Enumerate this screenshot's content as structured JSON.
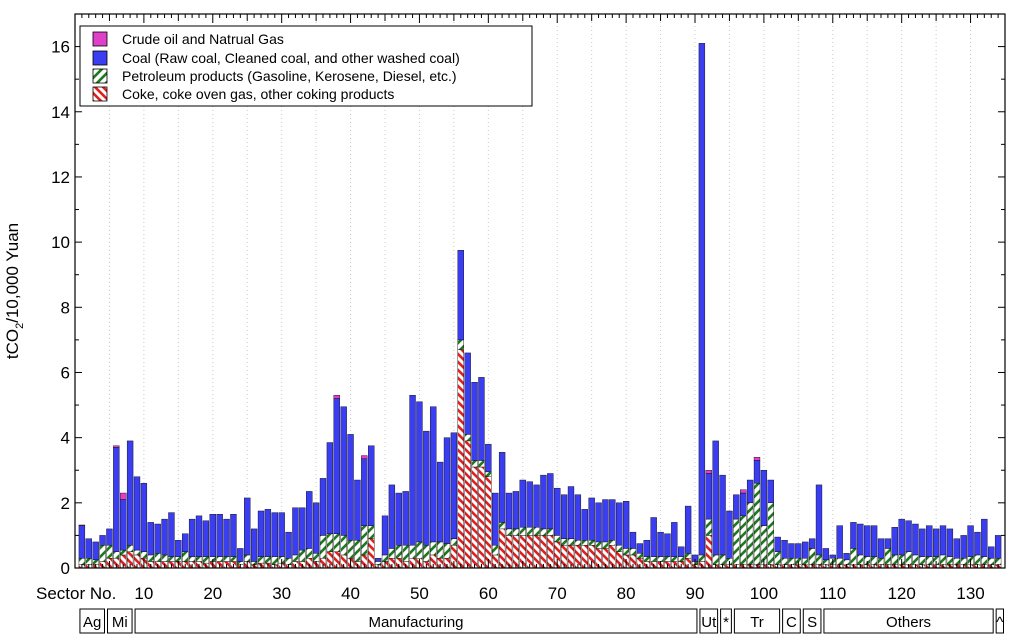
{
  "chart_data": {
    "type": "bar",
    "stacked": true,
    "ylabel": "tCO2/10,000 Yuan",
    "xlabel": "Sector No.",
    "ylim": [
      0,
      17
    ],
    "xlim": [
      0,
      135
    ],
    "yticks": [
      0,
      2,
      4,
      6,
      8,
      10,
      12,
      14,
      16
    ],
    "xticks": [
      10,
      20,
      30,
      40,
      50,
      60,
      70,
      80,
      90,
      100,
      110,
      120,
      130
    ],
    "grid": "vertical-dotted",
    "legend_position": "top-left",
    "legend": [
      {
        "label": "Crude oil and Natrual Gas",
        "color": "#e040c8",
        "pattern": "solid"
      },
      {
        "label": "Coal (Raw coal, Cleaned coal, and other washed coal)",
        "color": "#3a3ef0",
        "pattern": "solid"
      },
      {
        "label": "Petroleum products (Gasoline, Kerosene, Diesel, etc.)",
        "color": "#1e7a1e",
        "pattern": "hatch-forward"
      },
      {
        "label": "Coke, coke oven gas, other coking products",
        "color": "#e02020",
        "pattern": "hatch-back"
      }
    ],
    "series_order_bottom_to_top": [
      "coke",
      "petroleum",
      "coal",
      "crude"
    ],
    "bars": [
      {
        "sector": 1,
        "coke": 0.1,
        "petroleum": 0.2,
        "coal": 1.0,
        "crude": 0.02
      },
      {
        "sector": 2,
        "coke": 0.1,
        "petroleum": 0.2,
        "coal": 0.6,
        "crude": 0.0
      },
      {
        "sector": 3,
        "coke": 0.1,
        "petroleum": 0.15,
        "coal": 0.55,
        "crude": 0.0
      },
      {
        "sector": 4,
        "coke": 0.2,
        "petroleum": 0.5,
        "coal": 0.3,
        "crude": 0.0
      },
      {
        "sector": 5,
        "coke": 0.3,
        "petroleum": 0.4,
        "coal": 0.5,
        "crude": 0.0
      },
      {
        "sector": 6,
        "coke": 0.3,
        "petroleum": 0.2,
        "coal": 3.2,
        "crude": 0.05
      },
      {
        "sector": 7,
        "coke": 0.4,
        "petroleum": 0.15,
        "coal": 1.55,
        "crude": 0.2
      },
      {
        "sector": 8,
        "coke": 0.5,
        "petroleum": 0.2,
        "coal": 3.2,
        "crude": 0.0
      },
      {
        "sector": 9,
        "coke": 0.4,
        "petroleum": 0.15,
        "coal": 2.25,
        "crude": 0.0
      },
      {
        "sector": 10,
        "coke": 0.3,
        "petroleum": 0.2,
        "coal": 2.1,
        "crude": 0.0
      },
      {
        "sector": 11,
        "coke": 0.2,
        "petroleum": 0.2,
        "coal": 1.0,
        "crude": 0.0
      },
      {
        "sector": 12,
        "coke": 0.2,
        "petroleum": 0.25,
        "coal": 0.9,
        "crude": 0.0
      },
      {
        "sector": 13,
        "coke": 0.2,
        "petroleum": 0.2,
        "coal": 1.1,
        "crude": 0.0
      },
      {
        "sector": 14,
        "coke": 0.2,
        "petroleum": 0.15,
        "coal": 1.35,
        "crude": 0.0
      },
      {
        "sector": 15,
        "coke": 0.2,
        "petroleum": 0.15,
        "coal": 0.5,
        "crude": 0.0
      },
      {
        "sector": 16,
        "coke": 0.2,
        "petroleum": 0.3,
        "coal": 0.55,
        "crude": 0.0
      },
      {
        "sector": 17,
        "coke": 0.2,
        "petroleum": 0.15,
        "coal": 1.15,
        "crude": 0.0
      },
      {
        "sector": 18,
        "coke": 0.2,
        "petroleum": 0.15,
        "coal": 1.25,
        "crude": 0.0
      },
      {
        "sector": 19,
        "coke": 0.15,
        "petroleum": 0.2,
        "coal": 1.1,
        "crude": 0.0
      },
      {
        "sector": 20,
        "coke": 0.2,
        "petroleum": 0.15,
        "coal": 1.3,
        "crude": 0.0
      },
      {
        "sector": 21,
        "coke": 0.2,
        "petroleum": 0.15,
        "coal": 1.3,
        "crude": 0.0
      },
      {
        "sector": 22,
        "coke": 0.2,
        "petroleum": 0.15,
        "coal": 1.15,
        "crude": 0.0
      },
      {
        "sector": 23,
        "coke": 0.2,
        "petroleum": 0.15,
        "coal": 1.3,
        "crude": 0.0
      },
      {
        "sector": 24,
        "coke": 0.1,
        "petroleum": 0.1,
        "coal": 0.4,
        "crude": 0.0
      },
      {
        "sector": 25,
        "coke": 0.2,
        "petroleum": 0.2,
        "coal": 1.75,
        "crude": 0.0
      },
      {
        "sector": 26,
        "coke": 0.1,
        "petroleum": 0.1,
        "coal": 1.0,
        "crude": 0.0
      },
      {
        "sector": 27,
        "coke": 0.15,
        "petroleum": 0.2,
        "coal": 1.4,
        "crude": 0.0
      },
      {
        "sector": 28,
        "coke": 0.15,
        "petroleum": 0.2,
        "coal": 1.45,
        "crude": 0.0
      },
      {
        "sector": 29,
        "coke": 0.1,
        "petroleum": 0.25,
        "coal": 1.35,
        "crude": 0.0
      },
      {
        "sector": 30,
        "coke": 0.15,
        "petroleum": 0.2,
        "coal": 1.35,
        "crude": 0.0
      },
      {
        "sector": 31,
        "coke": 0.1,
        "petroleum": 0.2,
        "coal": 0.8,
        "crude": 0.0
      },
      {
        "sector": 32,
        "coke": 0.2,
        "petroleum": 0.2,
        "coal": 1.45,
        "crude": 0.0
      },
      {
        "sector": 33,
        "coke": 0.2,
        "petroleum": 0.35,
        "coal": 1.3,
        "crude": 0.0
      },
      {
        "sector": 34,
        "coke": 0.3,
        "petroleum": 0.3,
        "coal": 1.75,
        "crude": 0.0
      },
      {
        "sector": 35,
        "coke": 0.2,
        "petroleum": 0.25,
        "coal": 1.55,
        "crude": 0.0
      },
      {
        "sector": 36,
        "coke": 0.3,
        "petroleum": 0.7,
        "coal": 1.75,
        "crude": 0.0
      },
      {
        "sector": 37,
        "coke": 0.5,
        "petroleum": 0.55,
        "coal": 2.8,
        "crude": 0.0
      },
      {
        "sector": 38,
        "coke": 0.5,
        "petroleum": 0.55,
        "coal": 4.15,
        "crude": 0.1
      },
      {
        "sector": 39,
        "coke": 0.4,
        "petroleum": 0.6,
        "coal": 3.95,
        "crude": 0.0
      },
      {
        "sector": 40,
        "coke": 0.3,
        "petroleum": 0.55,
        "coal": 3.25,
        "crude": 0.0
      },
      {
        "sector": 41,
        "coke": 0.2,
        "petroleum": 0.65,
        "coal": 1.85,
        "crude": 0.0
      },
      {
        "sector": 42,
        "coke": 0.4,
        "petroleum": 0.9,
        "coal": 2.05,
        "crude": 0.1
      },
      {
        "sector": 43,
        "coke": 0.9,
        "petroleum": 0.4,
        "coal": 2.45,
        "crude": 0.0
      },
      {
        "sector": 44,
        "coke": 0.1,
        "petroleum": 0.1,
        "coal": 0.1,
        "crude": 0.0
      },
      {
        "sector": 45,
        "coke": 0.2,
        "petroleum": 0.2,
        "coal": 1.2,
        "crude": 0.0
      },
      {
        "sector": 46,
        "coke": 0.3,
        "petroleum": 0.3,
        "coal": 1.95,
        "crude": 0.0
      },
      {
        "sector": 47,
        "coke": 0.3,
        "petroleum": 0.4,
        "coal": 1.6,
        "crude": 0.0
      },
      {
        "sector": 48,
        "coke": 0.2,
        "petroleum": 0.5,
        "coal": 1.65,
        "crude": 0.0
      },
      {
        "sector": 49,
        "coke": 0.3,
        "petroleum": 0.4,
        "coal": 4.6,
        "crude": 0.0
      },
      {
        "sector": 50,
        "coke": 0.3,
        "petroleum": 0.5,
        "coal": 4.3,
        "crude": 0.0
      },
      {
        "sector": 51,
        "coke": 0.2,
        "petroleum": 0.5,
        "coal": 3.5,
        "crude": 0.0
      },
      {
        "sector": 52,
        "coke": 0.4,
        "petroleum": 0.4,
        "coal": 4.15,
        "crude": 0.0
      },
      {
        "sector": 53,
        "coke": 0.3,
        "petroleum": 0.5,
        "coal": 2.45,
        "crude": 0.0
      },
      {
        "sector": 54,
        "coke": 0.3,
        "petroleum": 0.45,
        "coal": 3.25,
        "crude": 0.0
      },
      {
        "sector": 55,
        "coke": 0.7,
        "petroleum": 0.2,
        "coal": 3.25,
        "crude": 0.0
      },
      {
        "sector": 56,
        "coke": 6.7,
        "petroleum": 0.3,
        "coal": 2.75,
        "crude": 0.0
      },
      {
        "sector": 57,
        "coke": 3.9,
        "petroleum": 0.2,
        "coal": 2.5,
        "crude": 0.0
      },
      {
        "sector": 58,
        "coke": 3.1,
        "petroleum": 0.2,
        "coal": 2.4,
        "crude": 0.0
      },
      {
        "sector": 59,
        "coke": 3.1,
        "petroleum": 0.2,
        "coal": 2.55,
        "crude": 0.0
      },
      {
        "sector": 60,
        "coke": 2.8,
        "petroleum": 0.15,
        "coal": 0.85,
        "crude": 0.0
      },
      {
        "sector": 61,
        "coke": 0.4,
        "petroleum": 0.3,
        "coal": 1.6,
        "crude": 0.0
      },
      {
        "sector": 62,
        "coke": 1.2,
        "petroleum": 0.2,
        "coal": 2.15,
        "crude": 0.0
      },
      {
        "sector": 63,
        "coke": 1.0,
        "petroleum": 0.2,
        "coal": 1.1,
        "crude": 0.0
      },
      {
        "sector": 64,
        "coke": 1.0,
        "petroleum": 0.2,
        "coal": 1.15,
        "crude": 0.0
      },
      {
        "sector": 65,
        "coke": 1.0,
        "petroleum": 0.25,
        "coal": 1.45,
        "crude": 0.0
      },
      {
        "sector": 66,
        "coke": 1.0,
        "petroleum": 0.25,
        "coal": 1.4,
        "crude": 0.0
      },
      {
        "sector": 67,
        "coke": 1.0,
        "petroleum": 0.25,
        "coal": 1.3,
        "crude": 0.0
      },
      {
        "sector": 68,
        "coke": 1.0,
        "petroleum": 0.2,
        "coal": 1.65,
        "crude": 0.0
      },
      {
        "sector": 69,
        "coke": 1.0,
        "petroleum": 0.2,
        "coal": 1.7,
        "crude": 0.0
      },
      {
        "sector": 70,
        "coke": 0.8,
        "petroleum": 0.2,
        "coal": 1.45,
        "crude": 0.0
      },
      {
        "sector": 71,
        "coke": 0.7,
        "petroleum": 0.2,
        "coal": 1.35,
        "crude": 0.0
      },
      {
        "sector": 72,
        "coke": 0.7,
        "petroleum": 0.2,
        "coal": 1.6,
        "crude": 0.0
      },
      {
        "sector": 73,
        "coke": 0.7,
        "petroleum": 0.15,
        "coal": 1.4,
        "crude": 0.0
      },
      {
        "sector": 74,
        "coke": 0.7,
        "petroleum": 0.15,
        "coal": 0.95,
        "crude": 0.0
      },
      {
        "sector": 75,
        "coke": 0.7,
        "petroleum": 0.15,
        "coal": 1.3,
        "crude": 0.0
      },
      {
        "sector": 76,
        "coke": 0.6,
        "petroleum": 0.2,
        "coal": 1.2,
        "crude": 0.0
      },
      {
        "sector": 77,
        "coke": 0.6,
        "petroleum": 0.2,
        "coal": 1.3,
        "crude": 0.0
      },
      {
        "sector": 78,
        "coke": 0.7,
        "petroleum": 0.15,
        "coal": 1.25,
        "crude": 0.0
      },
      {
        "sector": 79,
        "coke": 0.5,
        "petroleum": 0.2,
        "coal": 1.3,
        "crude": 0.0
      },
      {
        "sector": 80,
        "coke": 0.4,
        "petroleum": 0.2,
        "coal": 1.45,
        "crude": 0.0
      },
      {
        "sector": 81,
        "coke": 0.4,
        "petroleum": 0.2,
        "coal": 0.5,
        "crude": 0.0
      },
      {
        "sector": 82,
        "coke": 0.3,
        "petroleum": 0.15,
        "coal": 0.3,
        "crude": 0.0
      },
      {
        "sector": 83,
        "coke": 0.2,
        "petroleum": 0.15,
        "coal": 0.5,
        "crude": 0.0
      },
      {
        "sector": 84,
        "coke": 0.2,
        "petroleum": 0.15,
        "coal": 1.2,
        "crude": 0.0
      },
      {
        "sector": 85,
        "coke": 0.2,
        "petroleum": 0.15,
        "coal": 0.75,
        "crude": 0.0
      },
      {
        "sector": 86,
        "coke": 0.2,
        "petroleum": 0.15,
        "coal": 0.7,
        "crude": 0.0
      },
      {
        "sector": 87,
        "coke": 0.2,
        "petroleum": 0.15,
        "coal": 1.05,
        "crude": 0.0
      },
      {
        "sector": 88,
        "coke": 0.2,
        "petroleum": 0.15,
        "coal": 0.3,
        "crude": 0.0
      },
      {
        "sector": 89,
        "coke": 0.3,
        "petroleum": 0.15,
        "coal": 1.45,
        "crude": 0.0
      },
      {
        "sector": 90,
        "coke": 0.1,
        "petroleum": 0.1,
        "coal": 0.2,
        "crude": 0.0
      },
      {
        "sector": 91,
        "coke": 0.2,
        "petroleum": 0.2,
        "coal": 15.7,
        "crude": 0.0
      },
      {
        "sector": 92,
        "coke": 1.0,
        "petroleum": 0.5,
        "coal": 1.4,
        "crude": 0.1
      },
      {
        "sector": 93,
        "coke": 0.1,
        "petroleum": 0.3,
        "coal": 3.5,
        "crude": 0.0
      },
      {
        "sector": 94,
        "coke": 0.1,
        "petroleum": 0.3,
        "coal": 2.45,
        "crude": 0.0
      },
      {
        "sector": 95,
        "coke": 0.1,
        "petroleum": 0.2,
        "coal": 1.45,
        "crude": 0.0
      },
      {
        "sector": 96,
        "coke": 0.1,
        "petroleum": 1.4,
        "coal": 0.75,
        "crude": 0.0
      },
      {
        "sector": 97,
        "coke": 0.1,
        "petroleum": 1.5,
        "coal": 0.7,
        "crude": 0.1
      },
      {
        "sector": 98,
        "coke": 0.1,
        "petroleum": 1.9,
        "coal": 0.7,
        "crude": 0.0
      },
      {
        "sector": 99,
        "coke": 0.1,
        "petroleum": 2.5,
        "coal": 0.7,
        "crude": 0.1
      },
      {
        "sector": 100,
        "coke": 0.1,
        "petroleum": 1.2,
        "coal": 1.7,
        "crude": 0.0
      },
      {
        "sector": 101,
        "coke": 0.1,
        "petroleum": 1.9,
        "coal": 0.7,
        "crude": 0.0
      },
      {
        "sector": 102,
        "coke": 0.1,
        "petroleum": 0.4,
        "coal": 0.45,
        "crude": 0.0
      },
      {
        "sector": 103,
        "coke": 0.1,
        "petroleum": 0.2,
        "coal": 0.55,
        "crude": 0.0
      },
      {
        "sector": 104,
        "coke": 0.1,
        "petroleum": 0.2,
        "coal": 0.45,
        "crude": 0.0
      },
      {
        "sector": 105,
        "coke": 0.1,
        "petroleum": 0.2,
        "coal": 0.45,
        "crude": 0.0
      },
      {
        "sector": 106,
        "coke": 0.1,
        "petroleum": 0.2,
        "coal": 0.5,
        "crude": 0.0
      },
      {
        "sector": 107,
        "coke": 0.1,
        "petroleum": 0.5,
        "coal": 0.3,
        "crude": 0.0
      },
      {
        "sector": 108,
        "coke": 0.1,
        "petroleum": 0.3,
        "coal": 2.15,
        "crude": 0.0
      },
      {
        "sector": 109,
        "coke": 0.1,
        "petroleum": 0.15,
        "coal": 0.35,
        "crude": 0.0
      },
      {
        "sector": 110,
        "coke": 0.1,
        "petroleum": 0.2,
        "coal": 0.1,
        "crude": 0.0
      },
      {
        "sector": 111,
        "coke": 0.1,
        "petroleum": 0.2,
        "coal": 1.0,
        "crude": 0.0
      },
      {
        "sector": 112,
        "coke": 0.1,
        "petroleum": 0.15,
        "coal": 0.2,
        "crude": 0.0
      },
      {
        "sector": 113,
        "coke": 0.1,
        "petroleum": 0.5,
        "coal": 0.8,
        "crude": 0.0
      },
      {
        "sector": 114,
        "coke": 0.1,
        "petroleum": 0.3,
        "coal": 0.95,
        "crude": 0.0
      },
      {
        "sector": 115,
        "coke": 0.1,
        "petroleum": 0.25,
        "coal": 0.95,
        "crude": 0.0
      },
      {
        "sector": 116,
        "coke": 0.1,
        "petroleum": 0.25,
        "coal": 0.95,
        "crude": 0.0
      },
      {
        "sector": 117,
        "coke": 0.1,
        "petroleum": 0.2,
        "coal": 0.6,
        "crude": 0.0
      },
      {
        "sector": 118,
        "coke": 0.1,
        "petroleum": 0.5,
        "coal": 0.3,
        "crude": 0.0
      },
      {
        "sector": 119,
        "coke": 0.1,
        "petroleum": 0.3,
        "coal": 0.85,
        "crude": 0.0
      },
      {
        "sector": 120,
        "coke": 0.1,
        "petroleum": 0.3,
        "coal": 1.1,
        "crude": 0.0
      },
      {
        "sector": 121,
        "coke": 0.1,
        "petroleum": 0.4,
        "coal": 0.95,
        "crude": 0.0
      },
      {
        "sector": 122,
        "coke": 0.1,
        "petroleum": 0.3,
        "coal": 0.95,
        "crude": 0.0
      },
      {
        "sector": 123,
        "coke": 0.1,
        "petroleum": 0.25,
        "coal": 0.85,
        "crude": 0.0
      },
      {
        "sector": 124,
        "coke": 0.1,
        "petroleum": 0.25,
        "coal": 0.95,
        "crude": 0.0
      },
      {
        "sector": 125,
        "coke": 0.1,
        "petroleum": 0.25,
        "coal": 0.85,
        "crude": 0.0
      },
      {
        "sector": 126,
        "coke": 0.1,
        "petroleum": 0.3,
        "coal": 0.9,
        "crude": 0.0
      },
      {
        "sector": 127,
        "coke": 0.1,
        "petroleum": 0.25,
        "coal": 0.85,
        "crude": 0.0
      },
      {
        "sector": 128,
        "coke": 0.1,
        "petroleum": 0.2,
        "coal": 0.6,
        "crude": 0.0
      },
      {
        "sector": 129,
        "coke": 0.1,
        "petroleum": 0.2,
        "coal": 0.7,
        "crude": 0.0
      },
      {
        "sector": 130,
        "coke": 0.1,
        "petroleum": 0.25,
        "coal": 0.95,
        "crude": 0.0
      },
      {
        "sector": 131,
        "coke": 0.1,
        "petroleum": 0.3,
        "coal": 0.7,
        "crude": 0.0
      },
      {
        "sector": 132,
        "coke": 0.1,
        "petroleum": 0.25,
        "coal": 1.15,
        "crude": 0.0
      },
      {
        "sector": 133,
        "coke": 0.1,
        "petroleum": 0.2,
        "coal": 0.35,
        "crude": 0.0
      },
      {
        "sector": 134,
        "coke": 0.1,
        "petroleum": 0.2,
        "coal": 0.7,
        "crude": 0.0
      }
    ],
    "category_groups": [
      {
        "label": "Ag",
        "start": 0.5,
        "end": 4.5
      },
      {
        "label": "Mi",
        "start": 4.5,
        "end": 8.5
      },
      {
        "label": "Manufacturing",
        "start": 8.5,
        "end": 90.5
      },
      {
        "label": "Ut",
        "start": 90.5,
        "end": 93.5
      },
      {
        "label": "*",
        "start": 93.5,
        "end": 95.5
      },
      {
        "label": "Tr",
        "start": 95.5,
        "end": 102.5
      },
      {
        "label": "C",
        "start": 102.5,
        "end": 105.5
      },
      {
        "label": "S",
        "start": 105.5,
        "end": 108.5
      },
      {
        "label": "Others",
        "start": 108.5,
        "end": 133.5
      },
      {
        "label": "^",
        "start": 133.5,
        "end": 135
      }
    ]
  }
}
